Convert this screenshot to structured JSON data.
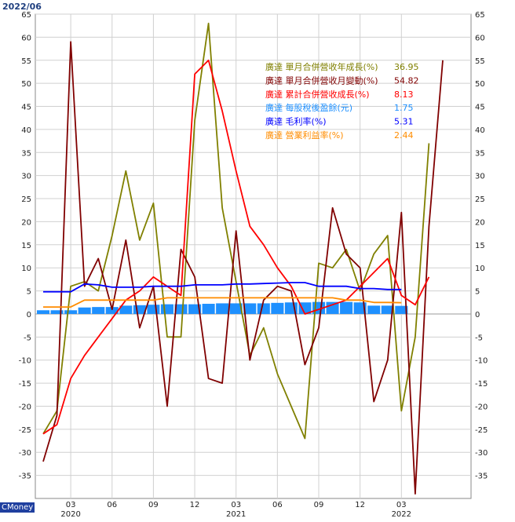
{
  "header": {
    "date": "2022/06"
  },
  "brand": {
    "label": "CMoney"
  },
  "chart_data": {
    "type": "line",
    "title": "",
    "xlabel": "",
    "ylabel": "",
    "ylim": [
      -40,
      65
    ],
    "y_ticks": [
      65,
      60,
      55,
      50,
      45,
      40,
      35,
      30,
      25,
      20,
      15,
      10,
      5,
      0,
      -5,
      -10,
      -15,
      -20,
      -25,
      -30,
      -35
    ],
    "months": [
      "2020-01",
      "2020-02",
      "2020-03",
      "2020-04",
      "2020-05",
      "2020-06",
      "2020-07",
      "2020-08",
      "2020-09",
      "2020-10",
      "2020-11",
      "2020-12",
      "2021-01",
      "2021-02",
      "2021-03",
      "2021-04",
      "2021-05",
      "2021-06",
      "2021-07",
      "2021-08",
      "2021-09",
      "2021-10",
      "2021-11",
      "2021-12",
      "2022-01",
      "2022-02",
      "2022-03",
      "2022-04",
      "2022-05",
      "2022-06"
    ],
    "x_month_ticks": [
      "03",
      "06",
      "09",
      "12",
      "03",
      "06",
      "09",
      "12",
      "03"
    ],
    "x_year_labels": [
      "2020",
      "2021",
      "2022"
    ],
    "grid": true,
    "legend_position": "top-right",
    "series": [
      {
        "name": "廣達 單月合併營收年成長(%)",
        "legend_value": "36.95",
        "color": "#808000",
        "kind": "line",
        "values": [
          -26,
          -21,
          6,
          7,
          5,
          17,
          31,
          16,
          24,
          -5,
          -5,
          42,
          63,
          23,
          7,
          -9,
          -3,
          -13,
          -20,
          -27,
          11,
          10,
          14,
          5,
          13,
          17,
          -21,
          -5,
          37,
          null
        ]
      },
      {
        "name": "廣達 單月合併營收月變動(%)",
        "legend_value": "54.82",
        "color": "#800000",
        "kind": "line",
        "values": [
          -32,
          -22,
          59,
          6,
          12,
          1,
          16,
          -3,
          6,
          -20,
          14,
          8,
          -14,
          -15,
          18,
          -10,
          3,
          6,
          5,
          -11,
          -3,
          23,
          13,
          10,
          -19,
          -10,
          22,
          -39,
          19,
          55
        ]
      },
      {
        "name": "廣達 累計合併營收成長(%)",
        "legend_value": "8.13",
        "color": "#ff0000",
        "kind": "line",
        "values": [
          -26,
          -24,
          -14,
          -9,
          -5,
          -1,
          3,
          5,
          8,
          6,
          4,
          52,
          55,
          44,
          31,
          19,
          15,
          10,
          6,
          0,
          1,
          2,
          3,
          6,
          9,
          12,
          4,
          2,
          8,
          null
        ]
      },
      {
        "name": "廣達 每股稅後盈餘(元)",
        "legend_value": "1.75",
        "color": "#1e90ff",
        "kind": "bar",
        "values": [
          0.8,
          0.8,
          0.8,
          1.4,
          1.5,
          1.5,
          1.8,
          1.9,
          2.0,
          2.1,
          2.1,
          2.1,
          2.2,
          2.3,
          2.3,
          2.3,
          2.3,
          2.4,
          2.5,
          2.5,
          2.6,
          2.6,
          2.6,
          2.5,
          1.8,
          1.8,
          1.75,
          null,
          null,
          null
        ]
      },
      {
        "name": "廣達 毛利率(%)",
        "legend_value": "5.31",
        "color": "#0000ff",
        "kind": "line",
        "values": [
          4.8,
          4.8,
          4.8,
          6.5,
          6.3,
          5.8,
          5.8,
          5.8,
          6.0,
          6.0,
          6.0,
          6.3,
          6.3,
          6.3,
          6.5,
          6.5,
          6.6,
          6.7,
          6.8,
          6.8,
          6.0,
          6.0,
          6.0,
          5.5,
          5.5,
          5.3,
          5.3,
          null,
          null,
          null
        ]
      },
      {
        "name": "廣達 營業利益率(%)",
        "legend_value": "2.44",
        "color": "#ff8c00",
        "kind": "line",
        "values": [
          1.5,
          1.5,
          1.5,
          3.0,
          3.0,
          3.0,
          3.0,
          3.0,
          3.0,
          3.5,
          3.5,
          3.5,
          3.5,
          3.5,
          3.5,
          3.5,
          3.5,
          3.5,
          3.5,
          3.5,
          3.5,
          3.5,
          3.0,
          3.0,
          2.5,
          2.5,
          2.44,
          null,
          null,
          null
        ]
      }
    ]
  }
}
